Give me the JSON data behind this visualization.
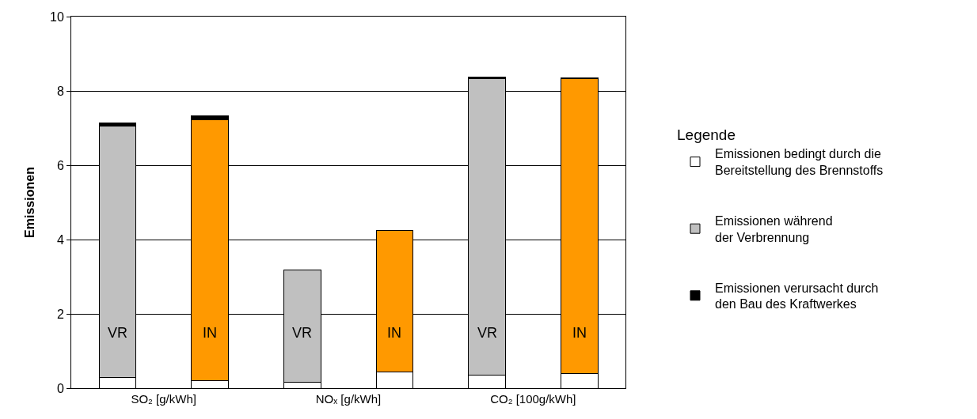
{
  "chart_data": {
    "type": "bar",
    "stacked": true,
    "ylabel": "Emissionen",
    "legend_title": "Legende",
    "categories": [
      "SO₂ [g/kWh]",
      null,
      "NOₓ [g/kWh]",
      null,
      "CO₂ [100g/kWh]",
      null
    ],
    "series": [
      {
        "name": "Emissionen bedingt durch die\nBereitstellung des Brennstoffs",
        "color": "#ffffff",
        "values": [
          0.28,
          0.2,
          0.17,
          0.44,
          0.36,
          0.4
        ]
      },
      {
        "name": "Emissionen während\nder Verbrennung",
        "colors": [
          "#c0c0c0",
          "#ff9900",
          "#c0c0c0",
          "#ff9900",
          "#c0c0c0",
          "#ff9900"
        ],
        "values": [
          6.78,
          7.03,
          3.02,
          3.8,
          7.98,
          7.92
        ]
      },
      {
        "name": "Emissionen verursacht durch\nden Bau des Kraftwerkes",
        "color": "#000000",
        "values": [
          0.07,
          0.09,
          null,
          null,
          0.04,
          0.04
        ]
      }
    ],
    "annotations": [
      "VR",
      "IN",
      "VR",
      "IN",
      "VR",
      "IN"
    ],
    "ylim": [
      0,
      10
    ],
    "yticks": [
      0,
      2,
      4,
      6,
      8,
      10
    ],
    "grid": "y",
    "legend": "right"
  }
}
